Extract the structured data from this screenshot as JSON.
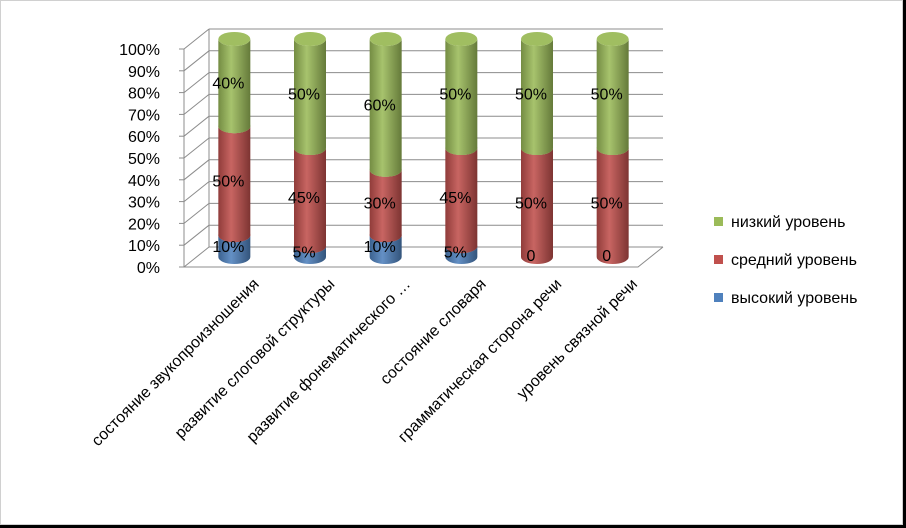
{
  "chart_data": {
    "type": "bar",
    "stacked": true,
    "three_d": true,
    "categories": [
      "состояние звукопроизношения",
      "развитие слоговой структуры",
      "развитие фонематического …",
      "состояние словаря",
      "грамматическая сторона речи",
      "уровень связной речи"
    ],
    "series": [
      {
        "name": "высокий уровень",
        "color": "#4f81bd",
        "values": [
          10,
          5,
          10,
          5,
          0,
          0
        ],
        "labels": [
          "10%",
          "5%",
          "10%",
          "5%",
          "0",
          "0"
        ]
      },
      {
        "name": "средний уровень",
        "color": "#c0504d",
        "values": [
          50,
          45,
          30,
          45,
          50,
          50
        ],
        "labels": [
          "50%",
          "45%",
          "30%",
          "45%",
          "50%",
          "50%"
        ]
      },
      {
        "name": "низкий уровень",
        "color": "#9bbb59",
        "values": [
          40,
          50,
          60,
          50,
          50,
          50
        ],
        "labels": [
          "40%",
          "50%",
          "60%",
          "50%",
          "50%",
          "50%"
        ]
      }
    ],
    "yticks": [
      "0%",
      "10%",
      "20%",
      "30%",
      "40%",
      "50%",
      "60%",
      "70%",
      "80%",
      "90%",
      "100%"
    ],
    "ylim": [
      0,
      100
    ],
    "grid": true,
    "legend_position": "right",
    "legend_order": [
      "низкий уровень",
      "средний уровень",
      "высокий уровень"
    ]
  }
}
